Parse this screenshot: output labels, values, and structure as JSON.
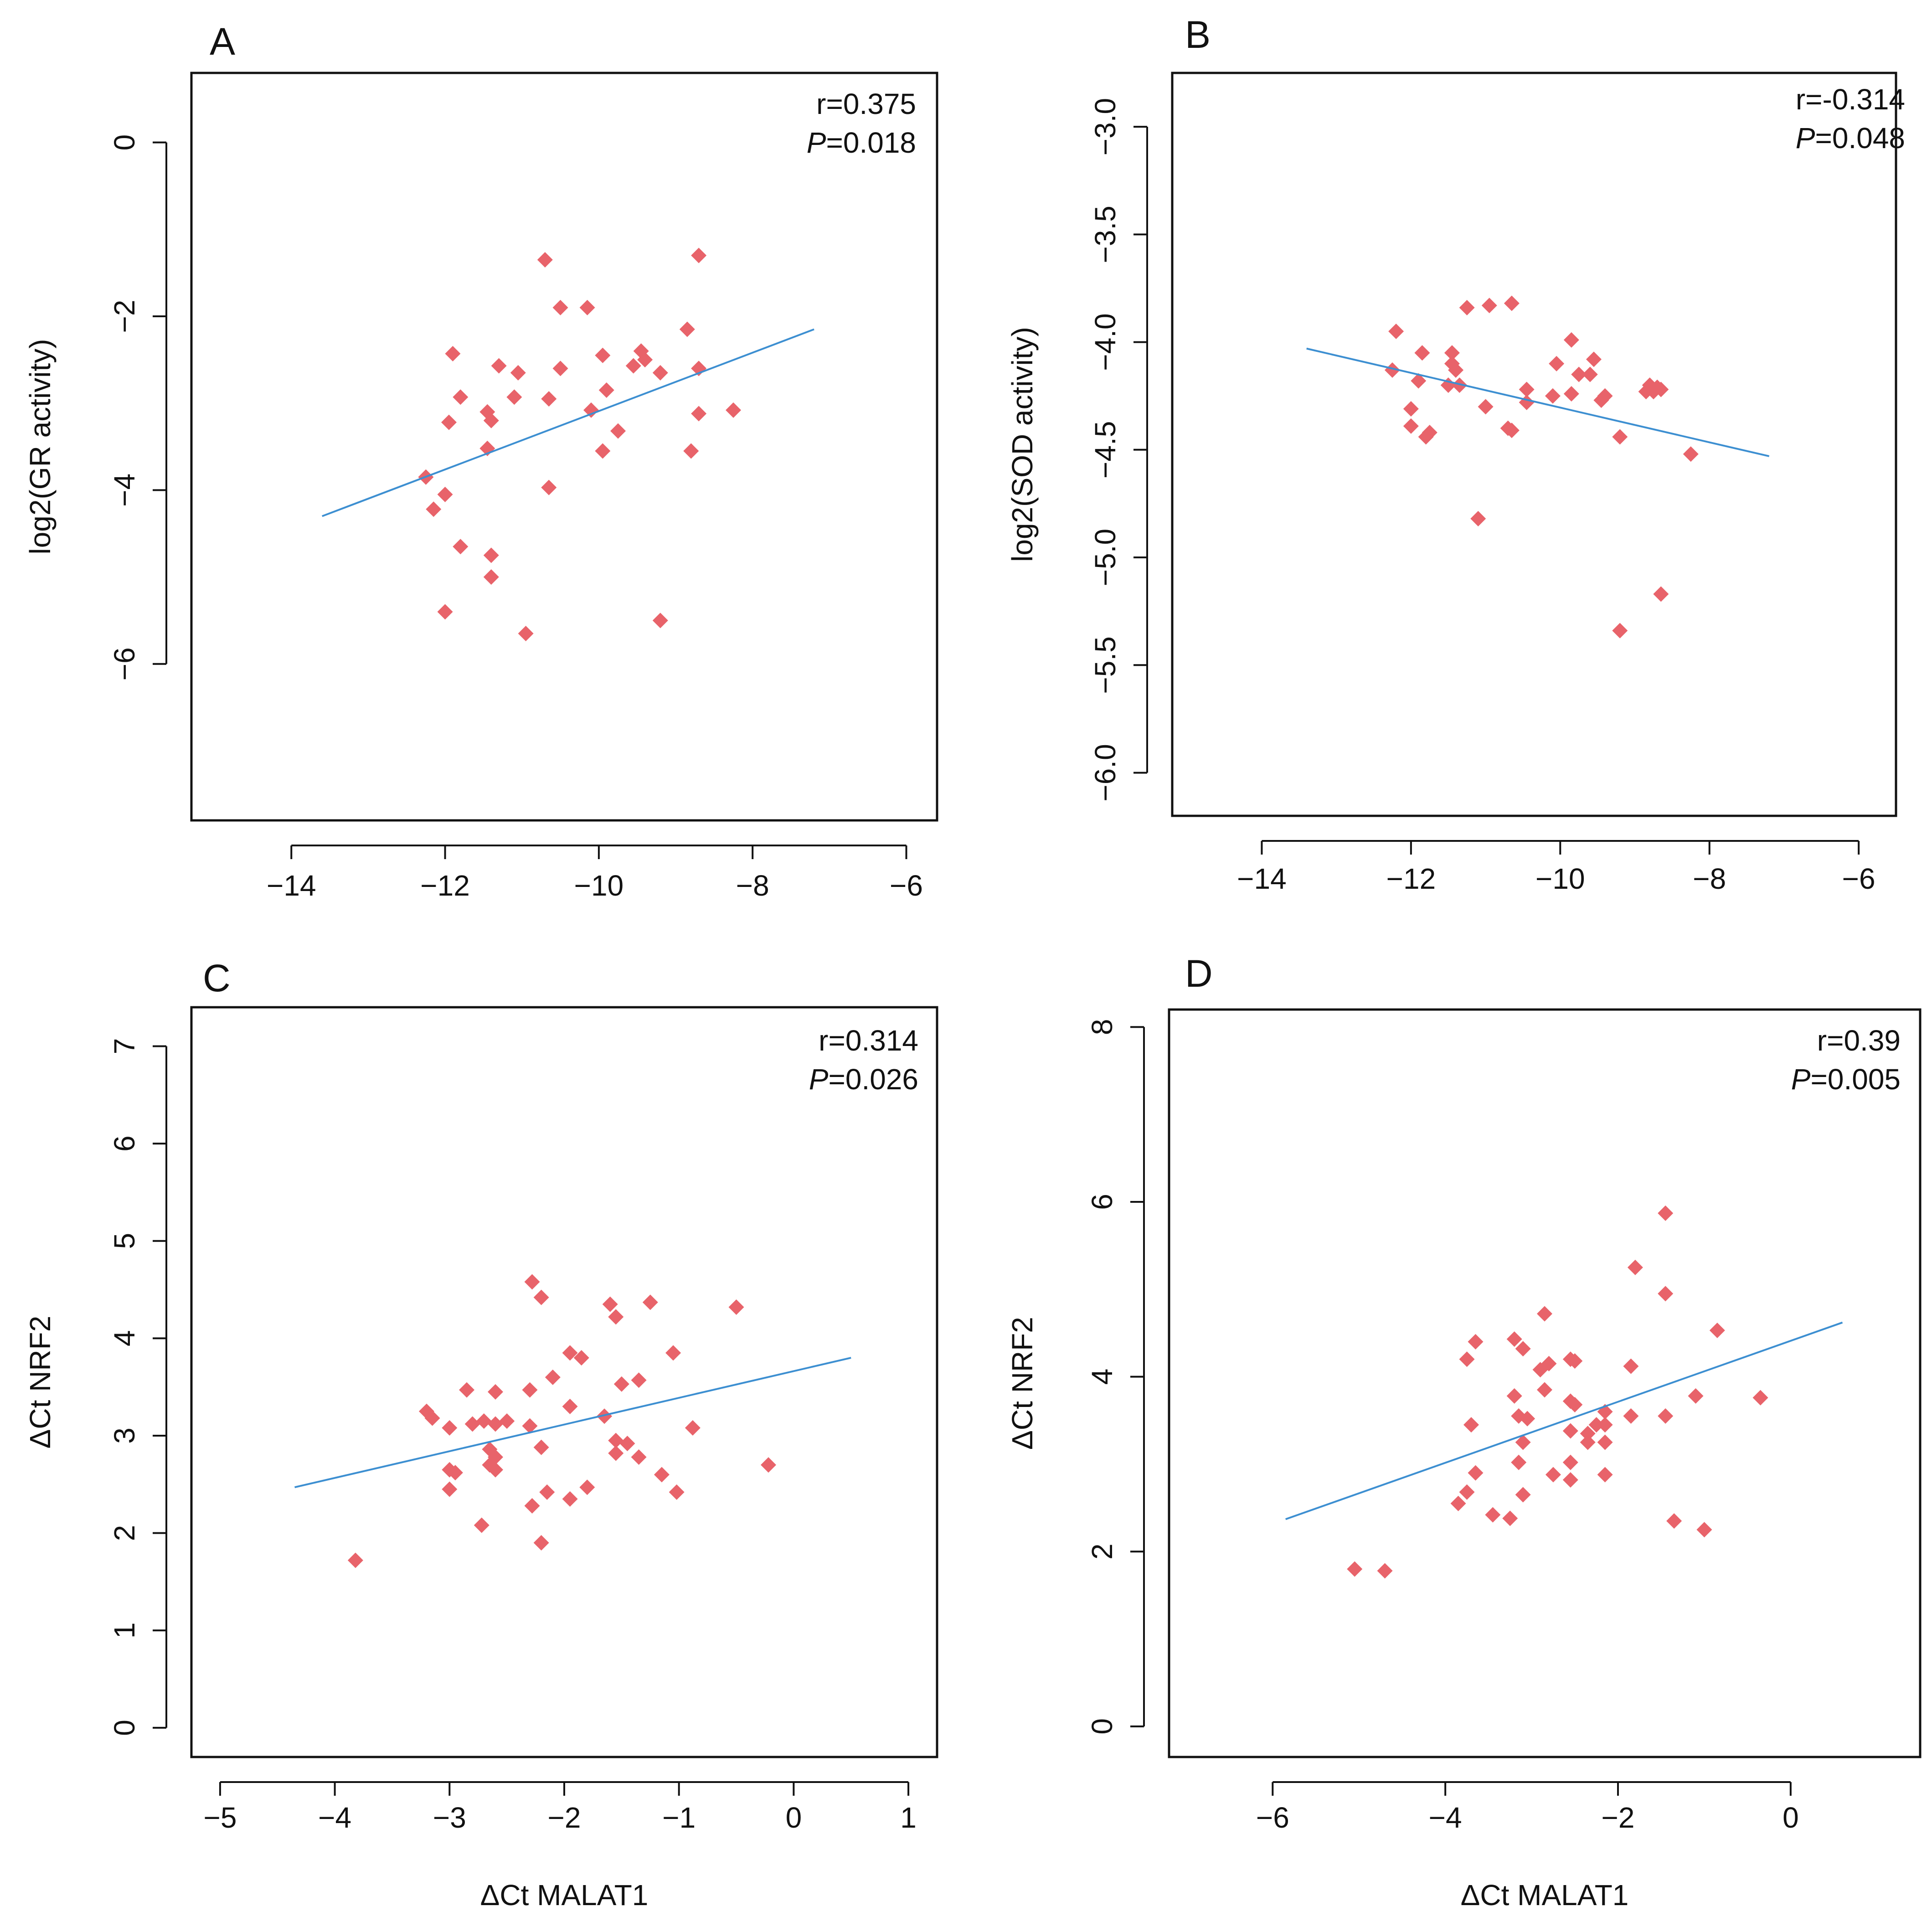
{
  "colors": {
    "point": "#e8636a",
    "line": "#3d8fd1",
    "axis": "#111111",
    "background": "#ffffff"
  },
  "chart_data": [
    {
      "panel": "A",
      "type": "scatter",
      "xlabel": "",
      "ylabel": "log2(GR activity)",
      "xlim": [
        -15.3,
        -5.6
      ],
      "ylim": [
        -7.8,
        0.8
      ],
      "xticks": [
        -14,
        -12,
        -10,
        -8,
        -6
      ],
      "xtick_labels": [
        "−14",
        "−12",
        "−10",
        "−8",
        "−6"
      ],
      "yticks": [
        0,
        -2,
        -4,
        -6
      ],
      "ytick_labels": [
        "0",
        "−2",
        "−4",
        "−6"
      ],
      "annotation": {
        "r": "r=0.375",
        "p_label": "P",
        "p_value": "=0.018"
      },
      "trend_line": {
        "x": [
          -13.6,
          -7.2
        ],
        "y": [
          -4.3,
          -2.15
        ]
      },
      "points": [
        {
          "x": -10.7,
          "y": -1.35
        },
        {
          "x": -8.7,
          "y": -1.3
        },
        {
          "x": -10.5,
          "y": -1.9
        },
        {
          "x": -10.15,
          "y": -1.9
        },
        {
          "x": -8.85,
          "y": -2.15
        },
        {
          "x": -11.9,
          "y": -2.43
        },
        {
          "x": -9.95,
          "y": -2.45
        },
        {
          "x": -9.45,
          "y": -2.4
        },
        {
          "x": -9.4,
          "y": -2.5
        },
        {
          "x": -9.55,
          "y": -2.57
        },
        {
          "x": -11.3,
          "y": -2.57
        },
        {
          "x": -10.5,
          "y": -2.6
        },
        {
          "x": -8.7,
          "y": -2.6
        },
        {
          "x": -9.2,
          "y": -2.65
        },
        {
          "x": -11.05,
          "y": -2.65
        },
        {
          "x": -9.9,
          "y": -2.85
        },
        {
          "x": -11.8,
          "y": -2.93
        },
        {
          "x": -11.1,
          "y": -2.93
        },
        {
          "x": -10.65,
          "y": -2.95
        },
        {
          "x": -11.45,
          "y": -3.1
        },
        {
          "x": -10.1,
          "y": -3.08
        },
        {
          "x": -8.25,
          "y": -3.08
        },
        {
          "x": -8.7,
          "y": -3.12
        },
        {
          "x": -11.4,
          "y": -3.2
        },
        {
          "x": -11.95,
          "y": -3.22
        },
        {
          "x": -9.75,
          "y": -3.32
        },
        {
          "x": -11.45,
          "y": -3.52
        },
        {
          "x": -9.95,
          "y": -3.55
        },
        {
          "x": -8.8,
          "y": -3.55
        },
        {
          "x": -12.25,
          "y": -3.85
        },
        {
          "x": -10.65,
          "y": -3.97
        },
        {
          "x": -12.0,
          "y": -4.05
        },
        {
          "x": -12.15,
          "y": -4.22
        },
        {
          "x": -11.8,
          "y": -4.65
        },
        {
          "x": -11.4,
          "y": -4.75
        },
        {
          "x": -11.4,
          "y": -5.0
        },
        {
          "x": -12.0,
          "y": -5.4
        },
        {
          "x": -9.2,
          "y": -5.5
        },
        {
          "x": -10.95,
          "y": -5.65
        }
      ]
    },
    {
      "panel": "B",
      "type": "scatter",
      "xlabel": "",
      "ylabel": "log2(SOD activity)",
      "xlim": [
        -15.2,
        -5.5
      ],
      "ylim": [
        -6.2,
        -2.75
      ],
      "xticks": [
        -14,
        -12,
        -10,
        -8,
        -6
      ],
      "xtick_labels": [
        "−14",
        "−12",
        "−10",
        "−8",
        "−6"
      ],
      "yticks": [
        -3.0,
        -3.5,
        -4.0,
        -4.5,
        -5.0,
        -5.5,
        -6.0
      ],
      "ytick_labels": [
        "−3.0",
        "−3.5",
        "−4.0",
        "−4.5",
        "−5.0",
        "−5.5",
        "−6.0"
      ],
      "annotation": {
        "r": "r=-0.314",
        "p_label": "P",
        "p_value": "=0.048"
      },
      "trend_line": {
        "x": [
          -13.4,
          -7.2
        ],
        "y": [
          -4.03,
          -4.53
        ]
      },
      "points": [
        {
          "x": -10.65,
          "y": -3.82
        },
        {
          "x": -10.95,
          "y": -3.83
        },
        {
          "x": -11.25,
          "y": -3.84
        },
        {
          "x": -12.2,
          "y": -3.95
        },
        {
          "x": -9.85,
          "y": -3.99
        },
        {
          "x": -11.85,
          "y": -4.05
        },
        {
          "x": -11.45,
          "y": -4.05
        },
        {
          "x": -9.55,
          "y": -4.08
        },
        {
          "x": -11.45,
          "y": -4.1
        },
        {
          "x": -10.05,
          "y": -4.1
        },
        {
          "x": -11.4,
          "y": -4.13
        },
        {
          "x": -12.25,
          "y": -4.13
        },
        {
          "x": -9.75,
          "y": -4.15
        },
        {
          "x": -9.6,
          "y": -4.15
        },
        {
          "x": -11.9,
          "y": -4.18
        },
        {
          "x": -11.35,
          "y": -4.2
        },
        {
          "x": -11.5,
          "y": -4.2
        },
        {
          "x": -10.45,
          "y": -4.22
        },
        {
          "x": -8.8,
          "y": -4.2
        },
        {
          "x": -8.7,
          "y": -4.21
        },
        {
          "x": -8.65,
          "y": -4.22
        },
        {
          "x": -8.75,
          "y": -4.23
        },
        {
          "x": -8.85,
          "y": -4.23
        },
        {
          "x": -9.85,
          "y": -4.24
        },
        {
          "x": -10.1,
          "y": -4.25
        },
        {
          "x": -9.4,
          "y": -4.25
        },
        {
          "x": -9.45,
          "y": -4.27
        },
        {
          "x": -10.45,
          "y": -4.28
        },
        {
          "x": -11.0,
          "y": -4.3
        },
        {
          "x": -12.0,
          "y": -4.31
        },
        {
          "x": -12.0,
          "y": -4.39
        },
        {
          "x": -10.7,
          "y": -4.4
        },
        {
          "x": -10.65,
          "y": -4.41
        },
        {
          "x": -11.75,
          "y": -4.42
        },
        {
          "x": -11.8,
          "y": -4.44
        },
        {
          "x": -9.2,
          "y": -4.44
        },
        {
          "x": -8.25,
          "y": -4.52
        },
        {
          "x": -11.1,
          "y": -4.82
        },
        {
          "x": -8.65,
          "y": -5.17
        },
        {
          "x": -9.2,
          "y": -5.34
        }
      ]
    },
    {
      "panel": "C",
      "type": "scatter",
      "xlabel": "ΔCt MALAT1",
      "ylabel": "ΔCt NRF2",
      "xlim": [
        -5.25,
        1.25
      ],
      "ylim": [
        -0.3,
        7.4
      ],
      "xticks": [
        -5,
        -4,
        -3,
        -2,
        -1,
        0,
        1
      ],
      "xtick_labels": [
        "−5",
        "−4",
        "−3",
        "−2",
        "−1",
        "0",
        "1"
      ],
      "yticks": [
        0,
        1,
        2,
        3,
        4,
        5,
        6,
        7
      ],
      "ytick_labels": [
        "0",
        "1",
        "2",
        "3",
        "4",
        "5",
        "6",
        "7"
      ],
      "annotation": {
        "r": "r=0.314",
        "p_label": "P",
        "p_value": "=0.026"
      },
      "trend_line": {
        "x": [
          -4.35,
          0.5
        ],
        "y": [
          2.47,
          3.8
        ]
      },
      "points": [
        {
          "x": -2.28,
          "y": 4.58
        },
        {
          "x": -2.2,
          "y": 4.42
        },
        {
          "x": -1.6,
          "y": 4.35
        },
        {
          "x": -1.25,
          "y": 4.37
        },
        {
          "x": -0.5,
          "y": 4.32
        },
        {
          "x": -1.55,
          "y": 4.22
        },
        {
          "x": -1.95,
          "y": 3.85
        },
        {
          "x": -1.85,
          "y": 3.8
        },
        {
          "x": -1.05,
          "y": 3.85
        },
        {
          "x": -2.1,
          "y": 3.6
        },
        {
          "x": -1.35,
          "y": 3.57
        },
        {
          "x": -1.5,
          "y": 3.53
        },
        {
          "x": -2.85,
          "y": 3.47
        },
        {
          "x": -2.6,
          "y": 3.45
        },
        {
          "x": -2.3,
          "y": 3.47
        },
        {
          "x": -1.65,
          "y": 3.2
        },
        {
          "x": -1.95,
          "y": 3.3
        },
        {
          "x": -3.2,
          "y": 3.25
        },
        {
          "x": -3.15,
          "y": 3.18
        },
        {
          "x": -2.5,
          "y": 3.15
        },
        {
          "x": -2.7,
          "y": 3.15
        },
        {
          "x": -2.8,
          "y": 3.12
        },
        {
          "x": -2.6,
          "y": 3.12
        },
        {
          "x": -2.3,
          "y": 3.1
        },
        {
          "x": -3.0,
          "y": 3.08
        },
        {
          "x": -0.88,
          "y": 3.08
        },
        {
          "x": -1.55,
          "y": 2.95
        },
        {
          "x": -1.45,
          "y": 2.92
        },
        {
          "x": -2.2,
          "y": 2.88
        },
        {
          "x": -2.65,
          "y": 2.86
        },
        {
          "x": -1.55,
          "y": 2.82
        },
        {
          "x": -2.6,
          "y": 2.78
        },
        {
          "x": -1.35,
          "y": 2.78
        },
        {
          "x": -2.65,
          "y": 2.7
        },
        {
          "x": -0.22,
          "y": 2.7
        },
        {
          "x": -3.0,
          "y": 2.65
        },
        {
          "x": -2.95,
          "y": 2.62
        },
        {
          "x": -2.6,
          "y": 2.65
        },
        {
          "x": -1.15,
          "y": 2.6
        },
        {
          "x": -1.8,
          "y": 2.47
        },
        {
          "x": -3.0,
          "y": 2.45
        },
        {
          "x": -2.15,
          "y": 2.42
        },
        {
          "x": -1.02,
          "y": 2.42
        },
        {
          "x": -1.95,
          "y": 2.35
        },
        {
          "x": -2.28,
          "y": 2.28
        },
        {
          "x": -2.72,
          "y": 2.08
        },
        {
          "x": -2.2,
          "y": 1.9
        },
        {
          "x": -3.82,
          "y": 1.72
        }
      ]
    },
    {
      "panel": "D",
      "type": "scatter",
      "xlabel": "ΔCt MALAT1",
      "ylabel": "ΔCt NRF2",
      "xlim": [
        -7.2,
        1.5
      ],
      "ylim": [
        -0.35,
        8.2
      ],
      "xticks": [
        -6,
        -4,
        -2,
        0
      ],
      "xtick_labels": [
        "−6",
        "−4",
        "−2",
        "0"
      ],
      "yticks": [
        0,
        2,
        4,
        6,
        8
      ],
      "ytick_labels": [
        "0",
        "2",
        "4",
        "6",
        "8"
      ],
      "annotation": {
        "r": "r=0.39",
        "p_label": "P",
        "p_value": "=0.005"
      },
      "trend_line": {
        "x": [
          -5.85,
          0.6
        ],
        "y": [
          2.37,
          4.62
        ]
      },
      "points": [
        {
          "x": -1.45,
          "y": 5.87
        },
        {
          "x": -1.8,
          "y": 5.25
        },
        {
          "x": -1.45,
          "y": 4.95
        },
        {
          "x": -2.85,
          "y": 4.72
        },
        {
          "x": -0.85,
          "y": 4.53
        },
        {
          "x": -3.65,
          "y": 4.4
        },
        {
          "x": -3.2,
          "y": 4.43
        },
        {
          "x": -3.1,
          "y": 4.32
        },
        {
          "x": -3.75,
          "y": 4.2
        },
        {
          "x": -2.55,
          "y": 4.2
        },
        {
          "x": -2.5,
          "y": 4.18
        },
        {
          "x": -2.8,
          "y": 4.15
        },
        {
          "x": -2.9,
          "y": 4.08
        },
        {
          "x": -1.85,
          "y": 4.12
        },
        {
          "x": -2.85,
          "y": 3.85
        },
        {
          "x": -3.2,
          "y": 3.78
        },
        {
          "x": -1.1,
          "y": 3.78
        },
        {
          "x": -0.35,
          "y": 3.76
        },
        {
          "x": -2.55,
          "y": 3.72
        },
        {
          "x": -2.5,
          "y": 3.68
        },
        {
          "x": -2.15,
          "y": 3.6
        },
        {
          "x": -3.15,
          "y": 3.55
        },
        {
          "x": -1.85,
          "y": 3.55
        },
        {
          "x": -1.45,
          "y": 3.55
        },
        {
          "x": -3.05,
          "y": 3.52
        },
        {
          "x": -3.7,
          "y": 3.45
        },
        {
          "x": -2.25,
          "y": 3.45
        },
        {
          "x": -2.15,
          "y": 3.45
        },
        {
          "x": -2.55,
          "y": 3.38
        },
        {
          "x": -2.35,
          "y": 3.35
        },
        {
          "x": -2.15,
          "y": 3.25
        },
        {
          "x": -2.35,
          "y": 3.25
        },
        {
          "x": -3.1,
          "y": 3.25
        },
        {
          "x": -3.15,
          "y": 3.02
        },
        {
          "x": -2.55,
          "y": 3.02
        },
        {
          "x": -3.65,
          "y": 2.9
        },
        {
          "x": -2.75,
          "y": 2.88
        },
        {
          "x": -2.15,
          "y": 2.88
        },
        {
          "x": -2.55,
          "y": 2.82
        },
        {
          "x": -3.75,
          "y": 2.68
        },
        {
          "x": -3.1,
          "y": 2.65
        },
        {
          "x": -3.85,
          "y": 2.55
        },
        {
          "x": -3.45,
          "y": 2.42
        },
        {
          "x": -3.25,
          "y": 2.38
        },
        {
          "x": -1.35,
          "y": 2.35
        },
        {
          "x": -1.0,
          "y": 2.25
        },
        {
          "x": -5.05,
          "y": 1.8
        },
        {
          "x": -4.7,
          "y": 1.78
        }
      ]
    }
  ]
}
